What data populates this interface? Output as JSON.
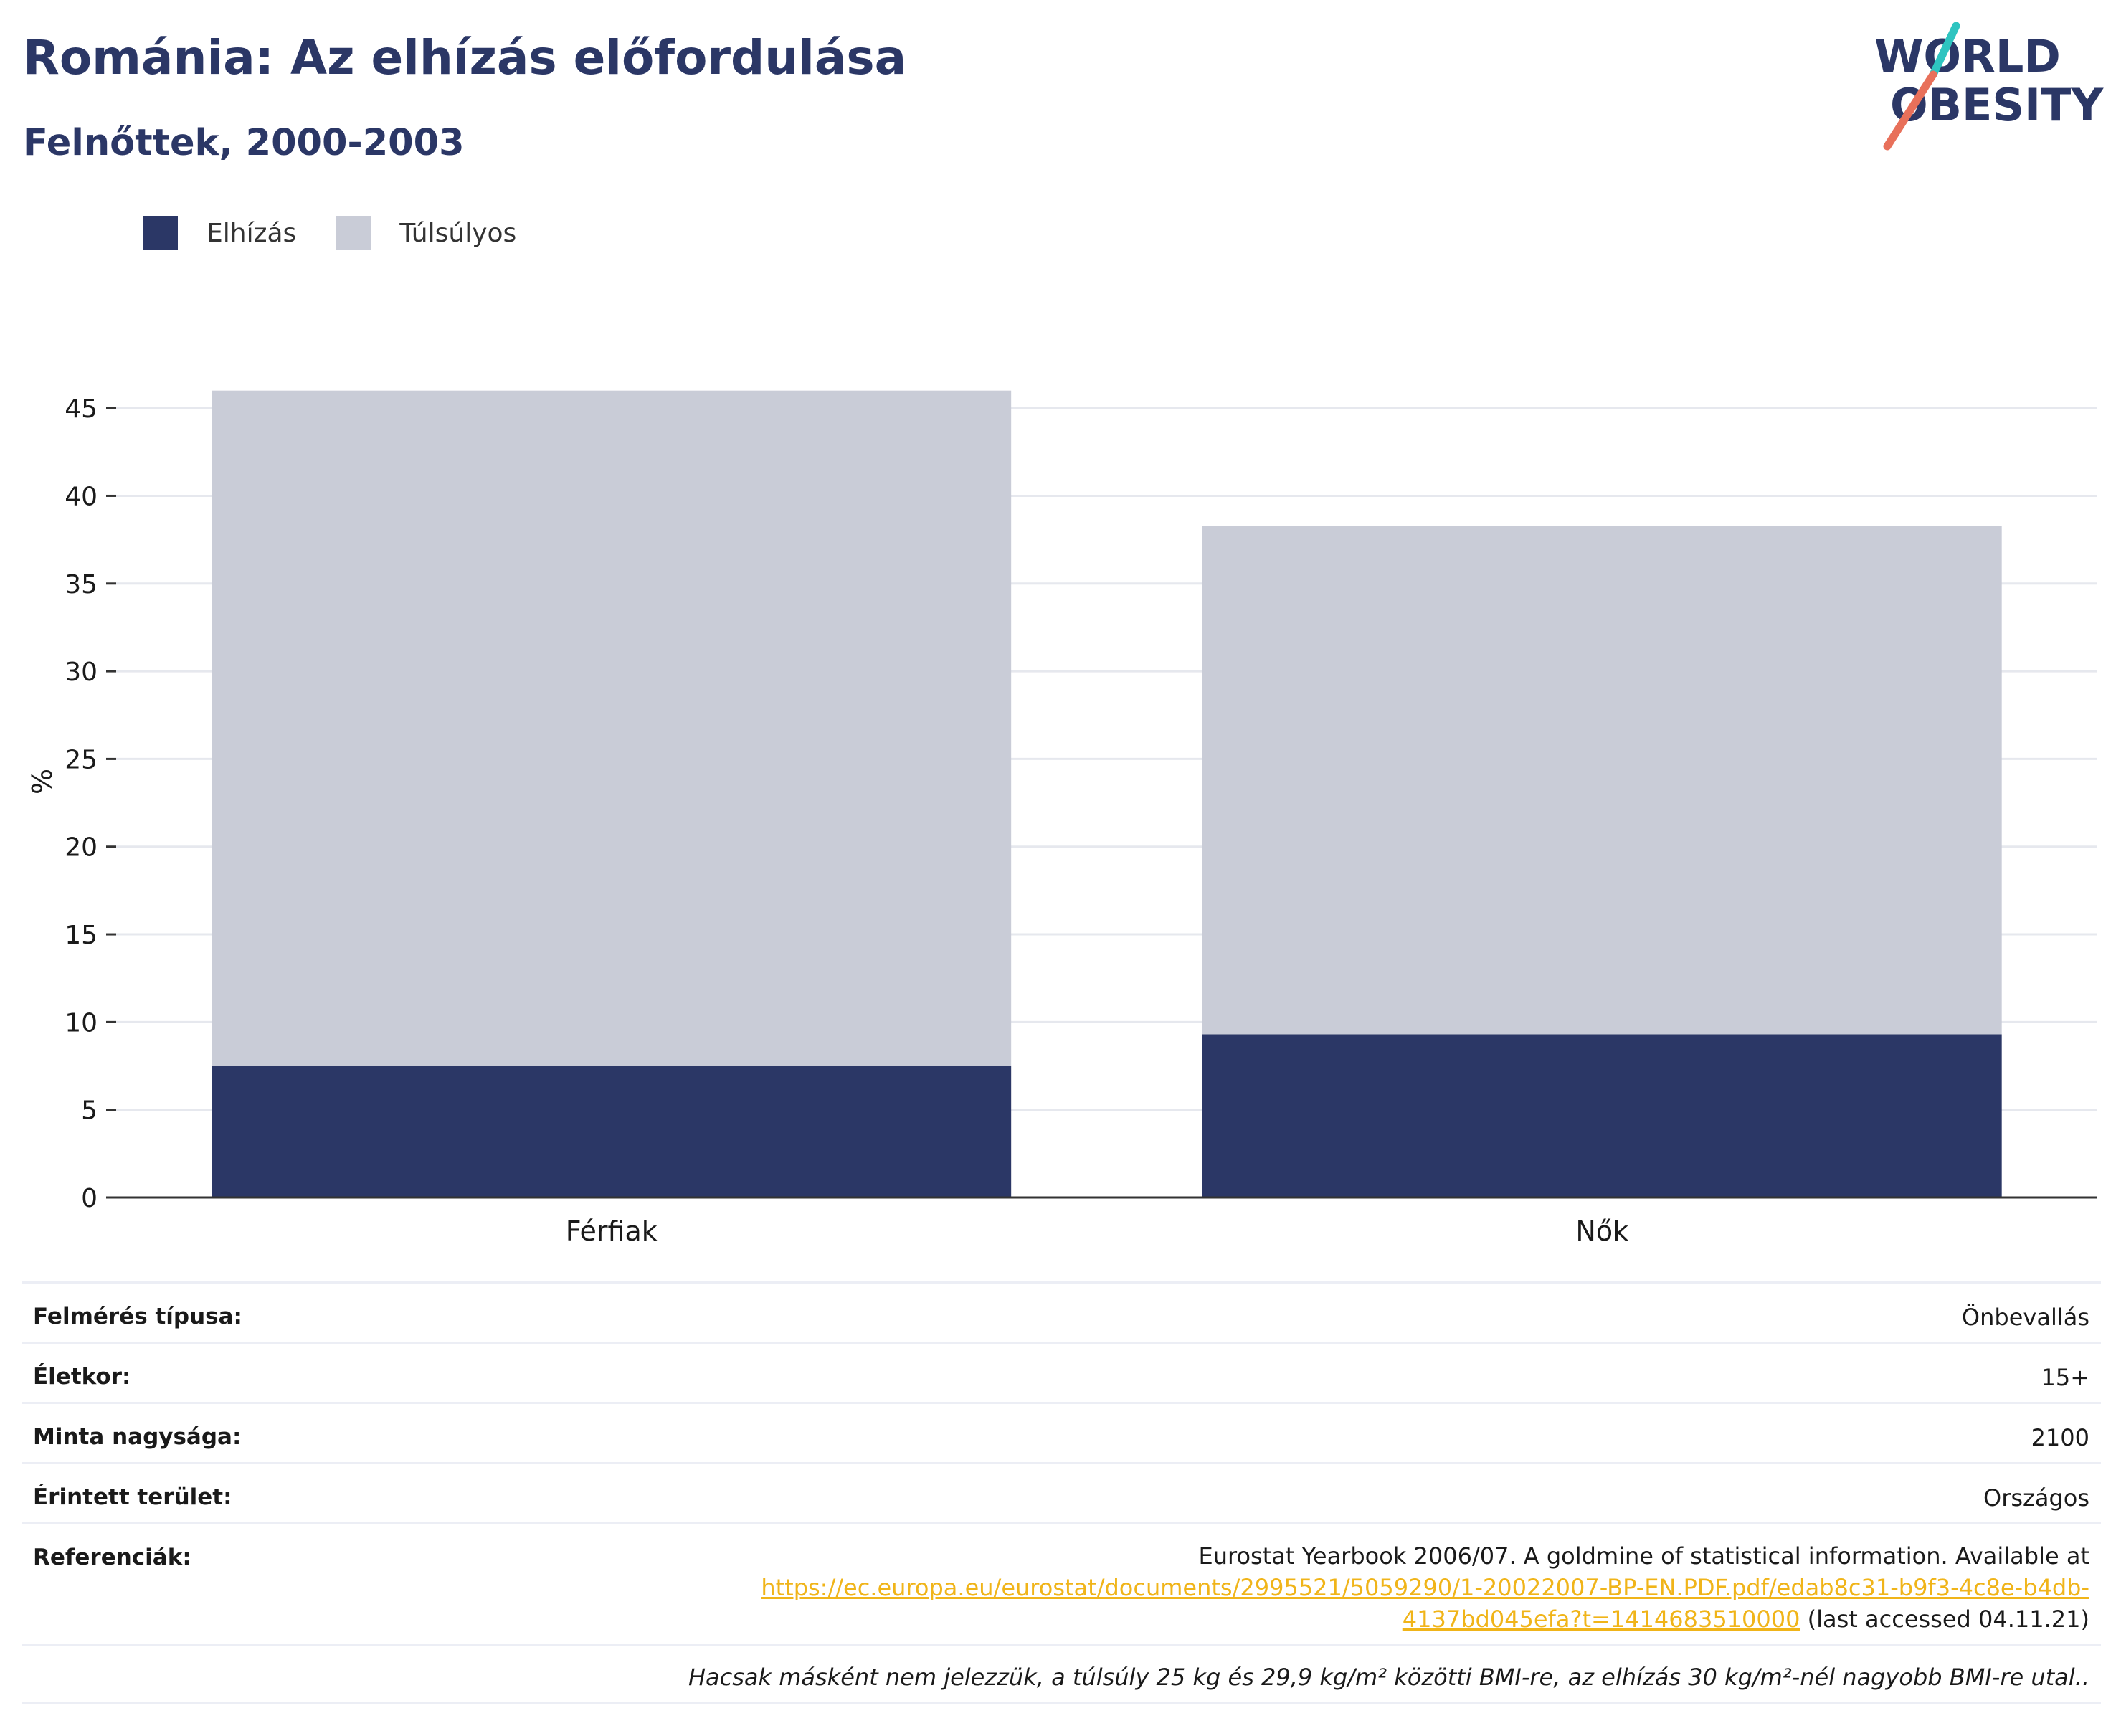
{
  "title": "Románia: Az elhízás előfordulása",
  "subtitle": "Felnőttek, 2000-2003",
  "logo": {
    "line1": "WORLD",
    "line2": "OBESITY",
    "text_color": "#2b3766",
    "stripe_colors": [
      "#2ec4c0",
      "#e8705a"
    ]
  },
  "colors": {
    "obesity": "#2b3766",
    "overweight": "#c9ccd7",
    "grid": "#e6e8ee",
    "axis": "#333333",
    "link": "#f0b419"
  },
  "chart_data": {
    "type": "bar",
    "stacked": true,
    "categories": [
      "Férfiak",
      "Nők"
    ],
    "series": [
      {
        "name": "Elhízás",
        "color": "#2b3766",
        "values": [
          7.5,
          9.3
        ]
      },
      {
        "name": "Túlsúlyos",
        "color": "#c9ccd7",
        "values": [
          38.5,
          29.0
        ]
      }
    ],
    "ylabel": "%",
    "ylim": [
      0,
      45
    ],
    "yticks": [
      0,
      5,
      10,
      15,
      20,
      25,
      30,
      35,
      40,
      45
    ],
    "grid": true,
    "legend_position": "top-left"
  },
  "info": {
    "survey_type": {
      "label": "Felmérés típusa:",
      "value": "Önbevallás"
    },
    "age": {
      "label": "Életkor:",
      "value": "15+"
    },
    "sample_size": {
      "label": "Minta nagysága:",
      "value": "2100"
    },
    "area": {
      "label": "Érintett terület:",
      "value": "Országos"
    },
    "references": {
      "label": "Referenciák:",
      "text_before": "Eurostat Yearbook 2006/07. A goldmine of statistical information. Available at",
      "link_line1": "https://ec.europa.eu/eurostat/documents/2995521/5059290/1-20022007-BP-EN.PDF.pdf/edab8c31-b9f3-4c8e-b4db-",
      "link_line2": "4137bd045efa?t=1414683510000",
      "text_after": " (last accessed 04.11.21)"
    },
    "note": "Hacsak másként nem jelezzük, a túlsúly 25 kg és 29,9 kg/m² közötti BMI-re, az elhízás 30 kg/m²-nél nagyobb BMI-re utal.."
  }
}
